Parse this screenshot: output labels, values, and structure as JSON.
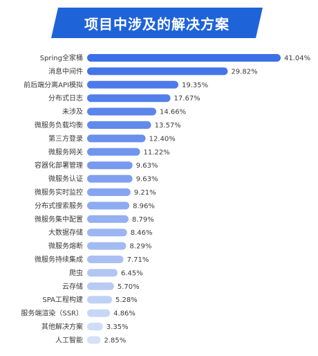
{
  "banner": {
    "title": "项目中涉及的解决方案"
  },
  "colors": {
    "banner": "#1f63d8",
    "bar_strong": "#3d6fe8",
    "bar_light": "#d6e1f8",
    "bar_track": "#eef2fb"
  },
  "chart_data": {
    "type": "bar",
    "orientation": "horizontal",
    "title": "项目中涉及的解决方案",
    "unit": "%",
    "xlim": [
      0,
      41.04
    ],
    "categories": [
      "Spring全家桶",
      "消息中间件",
      "前后端分离API模拟",
      "分布式日志",
      "未涉及",
      "微服务负载均衡",
      "第三方登录",
      "微服务网关",
      "容器化部署管理",
      "微服务认证",
      "微服务实时监控",
      "分布式搜索服务",
      "微服务集中配置",
      "大数据存储",
      "微服务熔断",
      "微服务持续集成",
      "爬虫",
      "云存储",
      "SPA工程构建",
      "服务端渲染（SSR）",
      "其他解决方案",
      "人工智能"
    ],
    "values": [
      41.04,
      29.82,
      19.35,
      17.67,
      14.66,
      13.57,
      12.4,
      11.22,
      9.63,
      9.63,
      9.21,
      8.96,
      8.79,
      8.46,
      8.29,
      7.71,
      6.45,
      5.7,
      5.28,
      4.86,
      3.35,
      2.85
    ],
    "value_labels": [
      "41.04%",
      "29.82%",
      "19.35%",
      "17.67%",
      "14.66%",
      "13.57%",
      "12.40%",
      "11.22%",
      "9.63%",
      "9.63%",
      "9.21%",
      "8.96%",
      "8.79%",
      "8.46%",
      "8.29%",
      "7.71%",
      "6.45%",
      "5.70%",
      "5.28%",
      "4.86%",
      "3.35%",
      "2.85%"
    ]
  }
}
